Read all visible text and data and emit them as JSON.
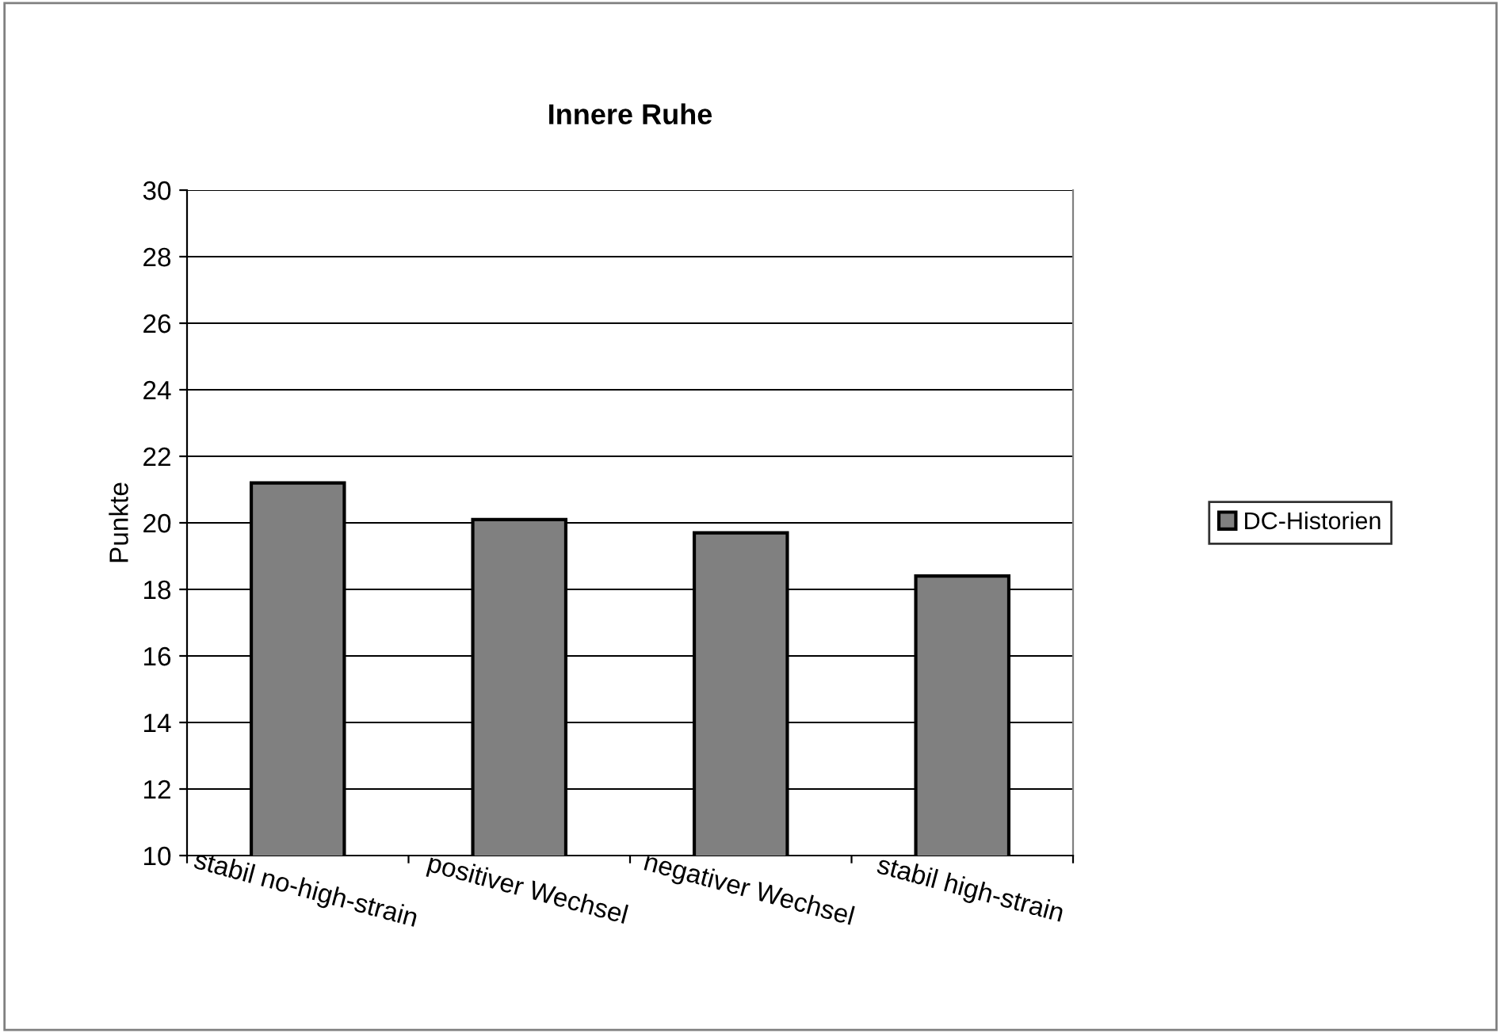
{
  "chart_data": {
    "type": "bar",
    "title": "Innere Ruhe",
    "ylabel": "Punkte",
    "categories": [
      "stabil no-high-strain",
      "positiver Wechsel",
      "negativer Wechsel",
      "stabil high-strain"
    ],
    "series": [
      {
        "name": "DC-Historien",
        "color": "#808080",
        "values": [
          21.2,
          20.1,
          19.7,
          18.4
        ]
      }
    ],
    "ylim": [
      10,
      30
    ],
    "yticks": [
      10,
      12,
      14,
      16,
      18,
      20,
      22,
      24,
      26,
      28,
      30
    ],
    "grid": "y",
    "legend": "right"
  }
}
